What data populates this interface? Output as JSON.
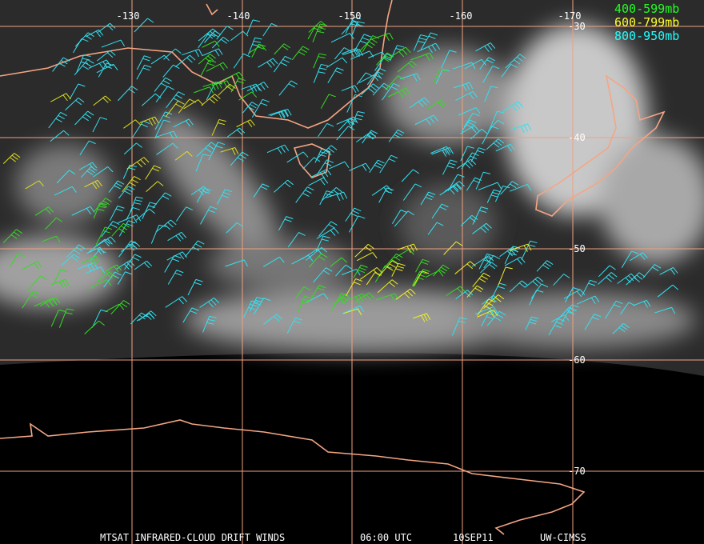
{
  "map": {
    "longitude_labels": [
      "-130",
      "-140",
      "-150",
      "-160",
      "-170"
    ],
    "latitude_labels": [
      "-30",
      "-40",
      "-50",
      "-60",
      "-70"
    ],
    "legend": [
      "400-599mb",
      "600-799mb",
      "800-950mb"
    ],
    "footer": {
      "product": "MTSAT INFRARED-CLOUD DRIFT WINDS",
      "time": "06:00 UTC",
      "date": "10SEP11",
      "source": "UW-CIMSS"
    }
  }
}
